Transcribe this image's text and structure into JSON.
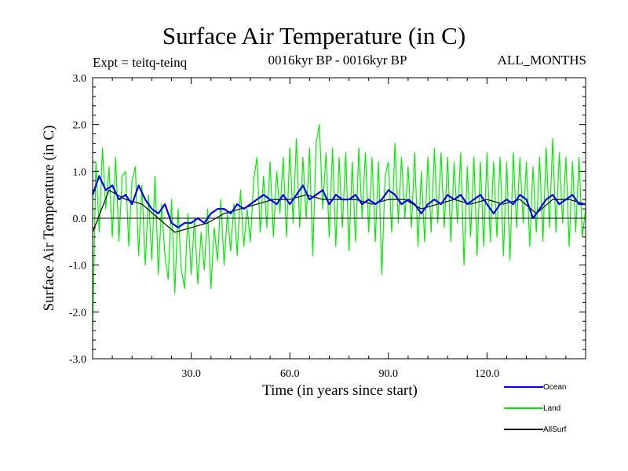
{
  "header": {
    "title": "Surface Air Temperature (in C)",
    "experiment": "Expt = teitq-teinq",
    "period": "0016kyr BP - 0016kyr BP",
    "months": "ALL_MONTHS"
  },
  "chart_data": {
    "type": "line",
    "title": "Surface Air Temperature (in C)",
    "xlabel": "Time (in years since start)",
    "ylabel": "Surface Air Temperature (in C)",
    "xlim": [
      0,
      150
    ],
    "ylim": [
      -3.0,
      3.0
    ],
    "x_ticks": [
      30,
      60,
      90,
      120
    ],
    "x_tick_labels": [
      "30.0",
      "60.0",
      "90.0",
      "120.0"
    ],
    "y_ticks": [
      3.0,
      2.0,
      1.0,
      0.0,
      -1.0,
      -2.0,
      -3.0
    ],
    "y_tick_labels": [
      "3.0",
      "2.0",
      "1.0",
      "0.0",
      "-1.0",
      "-2.0",
      "-3.0"
    ],
    "zero_line": 0.0,
    "series": [
      {
        "name": "Land",
        "color": "#00ee00",
        "x": [
          0,
          1,
          2,
          3,
          4,
          5,
          6,
          7,
          8,
          9,
          10,
          11,
          12,
          13,
          14,
          15,
          16,
          17,
          18,
          19,
          20,
          21,
          22,
          23,
          24,
          25,
          26,
          27,
          28,
          29,
          30,
          31,
          32,
          33,
          34,
          35,
          36,
          37,
          38,
          39,
          40,
          41,
          42,
          43,
          44,
          45,
          46,
          47,
          48,
          49,
          50,
          51,
          52,
          53,
          54,
          55,
          56,
          57,
          58,
          59,
          60,
          61,
          62,
          63,
          64,
          65,
          66,
          67,
          68,
          69,
          70,
          71,
          72,
          73,
          74,
          75,
          76,
          77,
          78,
          79,
          80,
          81,
          82,
          83,
          84,
          85,
          86,
          87,
          88,
          89,
          90,
          91,
          92,
          93,
          94,
          95,
          96,
          97,
          98,
          99,
          100,
          101,
          102,
          103,
          104,
          105,
          106,
          107,
          108,
          109,
          110,
          111,
          112,
          113,
          114,
          115,
          116,
          117,
          118,
          119,
          120,
          121,
          122,
          123,
          124,
          125,
          126,
          127,
          128,
          129,
          130,
          131,
          132,
          133,
          134,
          135,
          136,
          137,
          138,
          139,
          140,
          141,
          142,
          143,
          144,
          145,
          146,
          147,
          148,
          149,
          150
        ],
        "y": [
          -2.4,
          1.2,
          -0.3,
          1.5,
          0.2,
          1.1,
          -0.4,
          1.3,
          -0.5,
          0.9,
          1.0,
          -0.6,
          0.8,
          1.1,
          -0.8,
          0.7,
          -1.0,
          0.5,
          -0.9,
          0.9,
          -1.2,
          0.3,
          -0.8,
          -1.3,
          0.4,
          -1.6,
          0.2,
          -1.1,
          -1.5,
          0.1,
          -1.2,
          0.0,
          -1.4,
          -0.3,
          -1.1,
          0.2,
          -1.5,
          -0.2,
          -0.9,
          0.4,
          -1.0,
          0.1,
          -0.7,
          0.3,
          -0.8,
          0.6,
          -0.6,
          0.2,
          -0.5,
          0.8,
          1.3,
          -0.3,
          0.9,
          -0.2,
          1.2,
          -0.4,
          1.0,
          0.1,
          1.3,
          -0.4,
          1.5,
          -0.1,
          1.7,
          -0.2,
          1.3,
          0.0,
          1.5,
          -0.8,
          1.6,
          2.0,
          0.2,
          1.4,
          -0.4,
          1.5,
          -0.6,
          1.3,
          -0.2,
          1.4,
          -0.7,
          1.2,
          -0.5,
          1.5,
          0.0,
          1.4,
          -0.3,
          1.3,
          -0.5,
          1.2,
          -1.2,
          0.9,
          1.2,
          -0.3,
          1.6,
          -0.1,
          1.3,
          0.0,
          1.1,
          -0.2,
          1.4,
          -0.6,
          1.0,
          -0.5,
          1.3,
          -0.3,
          1.5,
          -0.1,
          1.4,
          -0.2,
          1.3,
          -0.5,
          1.2,
          -0.1,
          1.4,
          -1.0,
          1.1,
          -0.4,
          1.3,
          -0.8,
          1.2,
          -0.6,
          1.4,
          -0.5,
          1.2,
          -0.4,
          1.3,
          -0.8,
          1.2,
          -0.9,
          1.4,
          -0.2,
          1.3,
          -0.1,
          1.2,
          -0.6,
          1.1,
          -0.3,
          1.3,
          -0.5,
          1.5,
          -0.2,
          1.7,
          -0.3,
          1.4,
          -0.1,
          1.3,
          -0.6,
          1.2,
          -0.3,
          1.3,
          -0.4,
          0.2
        ]
      },
      {
        "name": "Ocean",
        "color": "#0000ff",
        "x": [
          0,
          2,
          4,
          6,
          8,
          10,
          12,
          14,
          16,
          18,
          20,
          22,
          24,
          26,
          28,
          30,
          32,
          34,
          36,
          38,
          40,
          42,
          44,
          46,
          48,
          50,
          52,
          54,
          56,
          58,
          60,
          62,
          64,
          66,
          68,
          70,
          72,
          74,
          76,
          78,
          80,
          82,
          84,
          86,
          88,
          90,
          92,
          94,
          96,
          98,
          100,
          102,
          104,
          106,
          108,
          110,
          112,
          114,
          116,
          118,
          120,
          122,
          124,
          126,
          128,
          130,
          132,
          134,
          136,
          138,
          140,
          142,
          144,
          146,
          148,
          150
        ],
        "y": [
          0.5,
          0.9,
          0.6,
          0.7,
          0.4,
          0.5,
          0.3,
          0.7,
          0.4,
          0.2,
          0.1,
          0.3,
          -0.1,
          -0.2,
          -0.1,
          -0.1,
          0.0,
          -0.1,
          0.1,
          0.2,
          0.2,
          0.1,
          0.3,
          0.2,
          0.3,
          0.4,
          0.5,
          0.4,
          0.3,
          0.5,
          0.3,
          0.5,
          0.7,
          0.4,
          0.5,
          0.6,
          0.3,
          0.5,
          0.4,
          0.4,
          0.5,
          0.3,
          0.4,
          0.3,
          0.4,
          0.6,
          0.5,
          0.3,
          0.4,
          0.3,
          0.1,
          0.3,
          0.4,
          0.3,
          0.5,
          0.4,
          0.5,
          0.3,
          0.4,
          0.5,
          0.3,
          0.1,
          0.3,
          0.4,
          0.3,
          0.5,
          0.4,
          0.0,
          0.2,
          0.4,
          0.5,
          0.3,
          0.4,
          0.5,
          0.3,
          0.3
        ]
      },
      {
        "name": "AllSurf",
        "color": "#000000",
        "x": [
          0,
          5,
          10,
          15,
          20,
          25,
          30,
          35,
          40,
          45,
          50,
          55,
          60,
          65,
          70,
          75,
          80,
          85,
          90,
          95,
          100,
          105,
          110,
          115,
          120,
          125,
          130,
          135,
          140,
          145,
          150
        ],
        "y": [
          -0.3,
          0.6,
          0.4,
          0.3,
          0.0,
          -0.3,
          -0.2,
          -0.1,
          0.1,
          0.2,
          0.3,
          0.4,
          0.4,
          0.5,
          0.4,
          0.4,
          0.4,
          0.3,
          0.4,
          0.4,
          0.2,
          0.3,
          0.4,
          0.3,
          0.4,
          0.3,
          0.4,
          0.1,
          0.4,
          0.4,
          0.3
        ]
      }
    ],
    "legend": {
      "placement": "bottom-right",
      "order": [
        "Ocean",
        "Land",
        "AllSurf"
      ]
    }
  }
}
